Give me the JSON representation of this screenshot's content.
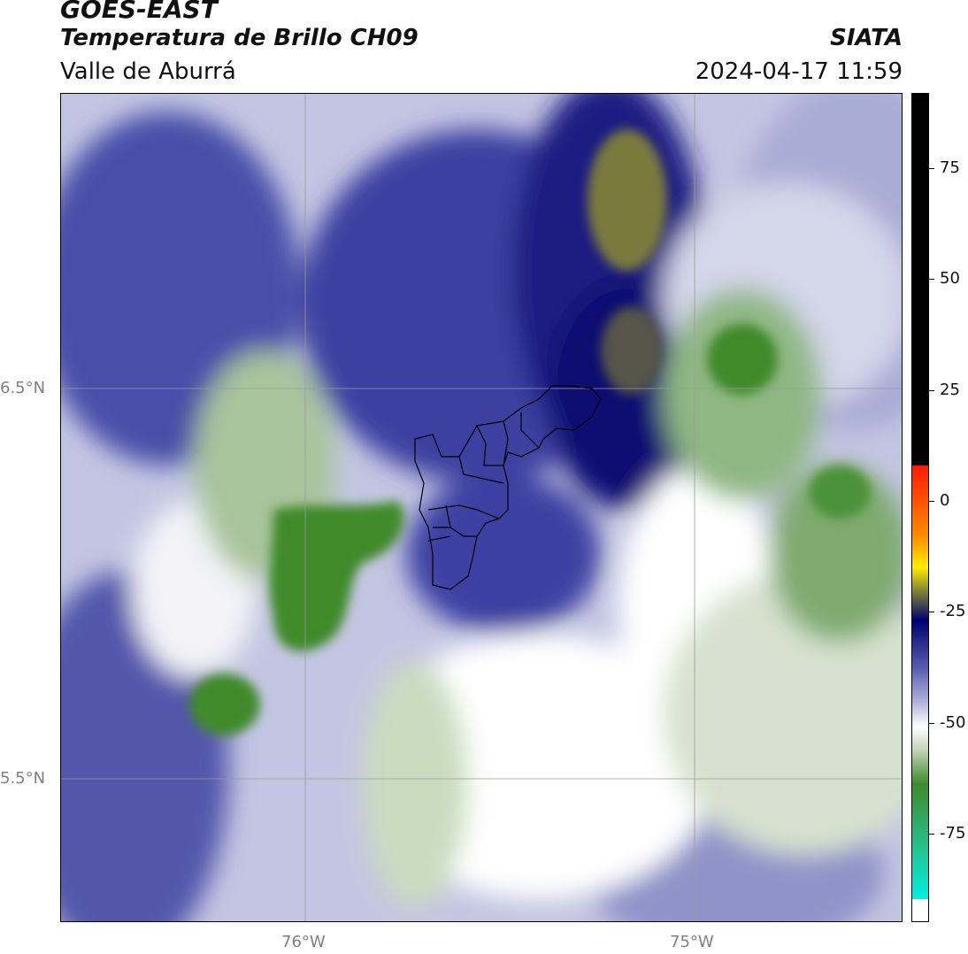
{
  "header": {
    "satellite": "GOES-EAST",
    "product": "Temperatura de Brillo CH09",
    "region": "Valle de Aburrá",
    "organization": "SIATA",
    "datetime": "2024-04-17 11:59"
  },
  "map": {
    "lat_labels": [
      "6.5°N",
      "5.5°N"
    ],
    "lon_labels": [
      "76°W",
      "75°W"
    ],
    "features": [
      "cloud-top brightness temperature field",
      "Valle de Aburrá municipal boundaries"
    ]
  },
  "colorbar": {
    "tick_labels": [
      "75",
      "50",
      "25",
      "0",
      "-25",
      "-50",
      "-75"
    ],
    "tick_values": [
      75,
      50,
      25,
      0,
      -25,
      -50,
      -75
    ],
    "range": [
      -95,
      92
    ],
    "colors": {
      "hot": "#000000",
      "red": "#ff1a00",
      "orange": "#ff8c00",
      "yellow": "#ffee00",
      "olive": "#8a8a33",
      "navy": "#000070",
      "purple_blue": "#5a5fb0",
      "lavender": "#b8bbdc",
      "white": "#ffffff",
      "light_green": "#c6d8bc",
      "green": "#3f8a2c",
      "teal": "#22c89a",
      "cyan": "#00f0e0"
    }
  }
}
